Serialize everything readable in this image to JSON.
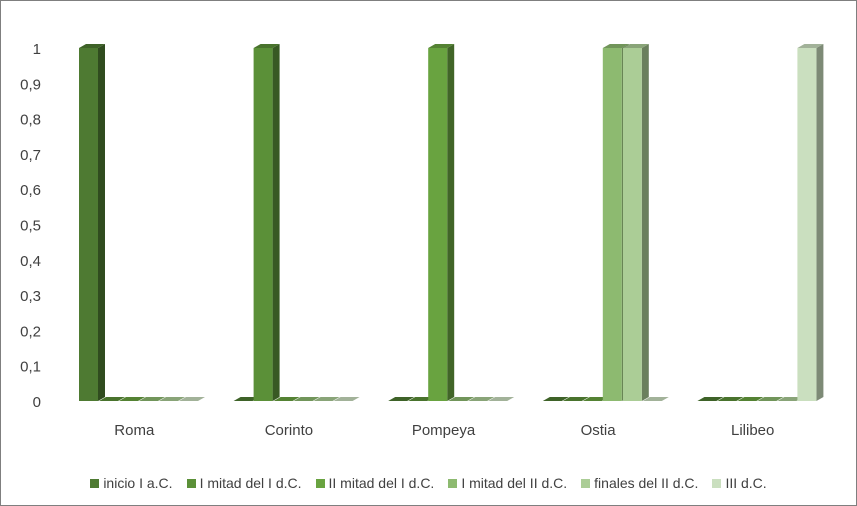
{
  "chart_data": {
    "type": "bar3d",
    "categories": [
      "Roma",
      "Corinto",
      "Pompeya",
      "Ostia",
      "Lilibeo"
    ],
    "series": [
      {
        "name": "inicio I a.C.",
        "color": "#4e7a32",
        "values": [
          1,
          0,
          0,
          0,
          0
        ]
      },
      {
        "name": "I mitad del I d.C.",
        "color": "#5b9038",
        "values": [
          0,
          1,
          0,
          0,
          0
        ]
      },
      {
        "name": "II mitad del I d.C.",
        "color": "#69a340",
        "values": [
          0,
          0,
          1,
          0,
          0
        ]
      },
      {
        "name": "I mitad del II d.C.",
        "color": "#8dba70",
        "values": [
          0,
          0,
          0,
          1,
          0
        ]
      },
      {
        "name": "finales del II d.C.",
        "color": "#abcd96",
        "values": [
          0,
          0,
          0,
          1,
          0
        ]
      },
      {
        "name": "III d.C.",
        "color": "#cadfbf",
        "values": [
          0,
          0,
          0,
          0,
          1
        ]
      }
    ],
    "ylim": [
      0,
      1
    ],
    "yticks": [
      0,
      {
        "value": 0.1,
        "label": "0,1"
      },
      {
        "value": 0.2,
        "label": "0,2"
      },
      {
        "value": 0.3,
        "label": "0,3"
      },
      {
        "value": 0.4,
        "label": "0,4"
      },
      {
        "value": 0.5,
        "label": "0,5"
      },
      {
        "value": 0.6,
        "label": "0,6"
      },
      {
        "value": 0.7,
        "label": "0,7"
      },
      {
        "value": 0.8,
        "label": "0,8"
      },
      {
        "value": 0.9,
        "label": "0,9"
      },
      1
    ],
    "grid": false
  }
}
